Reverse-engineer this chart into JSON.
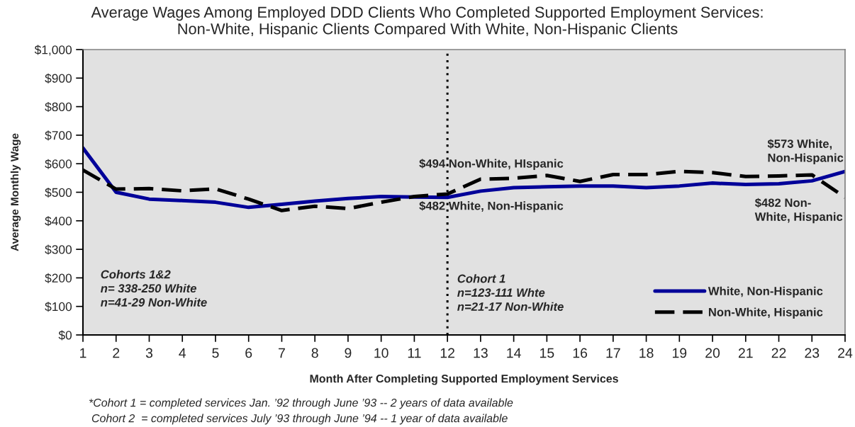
{
  "chart_data": {
    "type": "line",
    "title": "Average Wages Among Employed DDD Clients Who Completed Supported Employment Services:\nNon-White, Hispanic Clients Compared With White, Non-Hispanic Clients",
    "xlabel": "Month After Completing Supported Employment Services",
    "ylabel": "Average Monthly Wage",
    "x": [
      1,
      2,
      3,
      4,
      5,
      6,
      7,
      8,
      9,
      10,
      11,
      12,
      13,
      14,
      15,
      16,
      17,
      18,
      19,
      20,
      21,
      22,
      23,
      24
    ],
    "series": [
      {
        "name": "White, Non-Hispanic",
        "color": "#000099",
        "line_style": "solid",
        "values": [
          655,
          500,
          476,
          471,
          465,
          447,
          458,
          469,
          478,
          485,
          483,
          482,
          504,
          516,
          519,
          522,
          522,
          516,
          522,
          532,
          527,
          530,
          540,
          573
        ]
      },
      {
        "name": "Non-White, Hispanic",
        "color": "#000000",
        "line_style": "dashed",
        "values": [
          578,
          511,
          513,
          505,
          512,
          476,
          436,
          451,
          443,
          465,
          485,
          494,
          546,
          549,
          559,
          538,
          562,
          562,
          573,
          569,
          555,
          557,
          561,
          482
        ]
      }
    ],
    "xlim": [
      1,
      24
    ],
    "xticks": [
      1,
      2,
      3,
      4,
      5,
      6,
      7,
      8,
      9,
      10,
      11,
      12,
      13,
      14,
      15,
      16,
      17,
      18,
      19,
      20,
      21,
      22,
      23,
      24
    ],
    "ylim": [
      0,
      1000
    ],
    "yticks": [
      {
        "value": 0,
        "label": "$0"
      },
      {
        "value": 100,
        "label": "$100"
      },
      {
        "value": 200,
        "label": "$200"
      },
      {
        "value": 300,
        "label": "$300"
      },
      {
        "value": 400,
        "label": "$400"
      },
      {
        "value": 500,
        "label": "$500"
      },
      {
        "value": 600,
        "label": "$600"
      },
      {
        "value": 700,
        "label": "$700"
      },
      {
        "value": 800,
        "label": "$800"
      },
      {
        "value": 900,
        "label": "$900"
      },
      {
        "value": 1000,
        "label": "$1,000"
      }
    ],
    "ref_lines": [
      {
        "axis": "x",
        "value": 12,
        "color": "#000000",
        "line_style": "dotted"
      }
    ],
    "annotations": [
      "$494 Non-White, HIspanic",
      "$482 White, Non-Hispanic",
      "$573 White,\nNon-Hispanic",
      "$482 Non-\nWhite, Hispanic",
      "Cohorts 1&2\nn= 338-250 White\nn=41-29 Non-White",
      "Cohort 1\nn=123-111 Whte\nn=21-17 Non-White",
      "*Cohort 1 = completed services Jan. ’92 through June ’93 -- 2 years of data available",
      "Cohort 2  = completed services July ’93 through June ’94 -- 1 year of data available"
    ],
    "grid": false,
    "legend": "bottom right",
    "marker": "none"
  }
}
